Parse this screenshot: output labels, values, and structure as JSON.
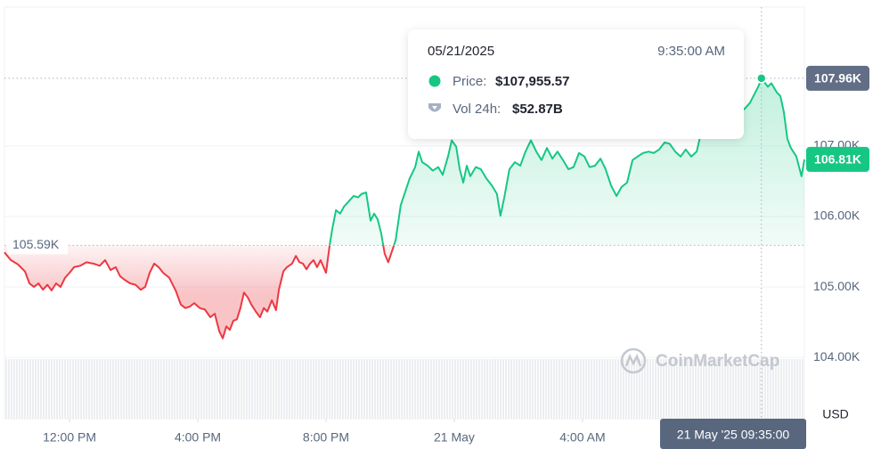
{
  "chart_data": {
    "type": "line",
    "x": [
      9.97,
      10.17,
      10.39,
      10.61,
      10.75,
      10.89,
      11.03,
      11.17,
      11.31,
      11.44,
      11.58,
      11.72,
      11.86,
      12.0,
      12.14,
      12.33,
      12.53,
      12.75,
      12.94,
      13.11,
      13.28,
      13.44,
      13.58,
      13.72,
      13.89,
      14.06,
      14.22,
      14.36,
      14.5,
      14.64,
      14.78,
      14.92,
      15.11,
      15.31,
      15.47,
      15.61,
      15.75,
      15.89,
      16.06,
      16.22,
      16.39,
      16.53,
      16.67,
      16.78,
      16.89,
      17.0,
      17.11,
      17.22,
      17.33,
      17.44,
      17.56,
      17.67,
      17.81,
      17.94,
      18.06,
      18.17,
      18.31,
      18.44,
      18.53,
      18.67,
      18.78,
      18.94,
      19.06,
      19.17,
      19.28,
      19.39,
      19.5,
      19.61,
      19.72,
      19.83,
      20.0,
      20.11,
      20.19,
      20.31,
      20.44,
      20.56,
      20.72,
      20.86,
      21.0,
      21.11,
      21.25,
      21.39,
      21.5,
      21.61,
      21.72,
      21.83,
      21.94,
      22.06,
      22.17,
      22.33,
      22.47,
      22.61,
      22.78,
      22.89,
      23.0,
      23.17,
      23.33,
      23.5,
      23.64,
      23.81,
      23.92,
      24.06,
      24.17,
      24.28,
      24.39,
      24.5,
      24.67,
      24.83,
      25.0,
      25.17,
      25.33,
      25.44,
      25.56,
      25.72,
      25.89,
      26.06,
      26.22,
      26.39,
      26.56,
      26.72,
      26.89,
      27.06,
      27.22,
      27.39,
      27.56,
      27.72,
      27.89,
      28.06,
      28.22,
      28.39,
      28.56,
      28.72,
      28.89,
      29.06,
      29.22,
      29.39,
      29.56,
      29.72,
      29.89,
      30.06,
      30.22,
      30.39,
      30.56,
      30.72,
      30.89,
      31.06,
      31.22,
      31.39,
      31.56,
      31.72,
      31.89,
      32.06,
      32.22,
      32.39,
      32.56,
      32.72,
      32.89,
      33.06,
      33.22,
      33.39,
      33.5,
      33.58,
      33.78,
      33.89,
      34.06,
      34.17,
      34.28,
      34.39,
      34.5,
      34.67,
      34.83,
      34.92
    ],
    "values": [
      105.49,
      105.38,
      105.32,
      105.22,
      105.05,
      105.0,
      105.05,
      104.96,
      105.03,
      104.95,
      105.05,
      105.0,
      105.13,
      105.2,
      105.28,
      105.3,
      105.35,
      105.33,
      105.3,
      105.38,
      105.24,
      105.28,
      105.15,
      105.1,
      105.05,
      105.03,
      104.96,
      105.0,
      105.2,
      105.33,
      105.28,
      105.2,
      105.13,
      104.95,
      104.75,
      104.7,
      104.72,
      104.77,
      104.7,
      104.68,
      104.57,
      104.62,
      104.37,
      104.27,
      104.44,
      104.39,
      104.52,
      104.54,
      104.7,
      104.92,
      104.85,
      104.75,
      104.65,
      104.57,
      104.7,
      104.65,
      104.81,
      104.67,
      104.96,
      105.22,
      105.28,
      105.33,
      105.44,
      105.35,
      105.33,
      105.25,
      105.33,
      105.38,
      105.28,
      105.38,
      105.2,
      105.58,
      105.81,
      106.09,
      106.04,
      106.14,
      106.22,
      106.29,
      106.27,
      106.32,
      106.34,
      105.94,
      106.04,
      105.96,
      105.76,
      105.47,
      105.35,
      105.51,
      105.66,
      106.16,
      106.35,
      106.54,
      106.7,
      106.92,
      106.77,
      106.72,
      106.65,
      106.7,
      106.59,
      106.86,
      107.08,
      106.99,
      106.67,
      106.48,
      106.72,
      106.57,
      106.7,
      106.67,
      106.54,
      106.44,
      106.32,
      106.01,
      106.27,
      106.67,
      106.77,
      106.72,
      106.92,
      107.08,
      106.92,
      106.8,
      106.97,
      106.82,
      106.92,
      106.8,
      106.67,
      106.7,
      106.9,
      106.85,
      106.7,
      106.72,
      106.82,
      106.67,
      106.44,
      106.29,
      106.42,
      106.48,
      106.8,
      106.85,
      106.9,
      106.92,
      106.9,
      106.95,
      107.05,
      107.03,
      106.92,
      106.85,
      106.95,
      106.85,
      106.92,
      107.23,
      107.41,
      107.46,
      107.56,
      107.51,
      107.48,
      107.56,
      107.46,
      107.53,
      107.61,
      107.76,
      107.86,
      107.96,
      107.84,
      107.89,
      107.76,
      107.71,
      107.48,
      107.1,
      106.97,
      106.85,
      106.57,
      106.81
    ],
    "colors": {
      "above": "#16c784",
      "below": "#ea3943"
    },
    "xlim": [
      9.97,
      34.92
    ],
    "xticks": [
      {
        "value": 12,
        "label": "12:00 PM"
      },
      {
        "value": 16,
        "label": "4:00 PM"
      },
      {
        "value": 20,
        "label": "8:00 PM"
      },
      {
        "value": 24,
        "label": "21 May"
      },
      {
        "value": 28,
        "label": "4:00 AM"
      }
    ],
    "ylim": [
      103.13,
      108.97
    ],
    "yticks": [
      {
        "value": 104,
        "label": "104.00K"
      },
      {
        "value": 105,
        "label": "105.00K"
      },
      {
        "value": 106,
        "label": "106.00K"
      },
      {
        "value": 107,
        "label": "107.00K"
      }
    ],
    "y_unit": "USD",
    "grid": true,
    "reference": {
      "value": 105.59,
      "label": "105.59K"
    },
    "current": {
      "value": 106.81,
      "label": "106.81K"
    },
    "crosshair": {
      "x": 33.58,
      "value": 107.96,
      "label": "107.96K",
      "x_label": "21 May '25 09:35:00"
    },
    "tooltip": {
      "date": "05/21/2025",
      "time": "9:35:00 AM",
      "price_label": "Price:",
      "price": "$107,955.57",
      "volume_label": "Vol 24h:",
      "volume": "$52.87B"
    },
    "watermark": "CoinMarketCap"
  }
}
